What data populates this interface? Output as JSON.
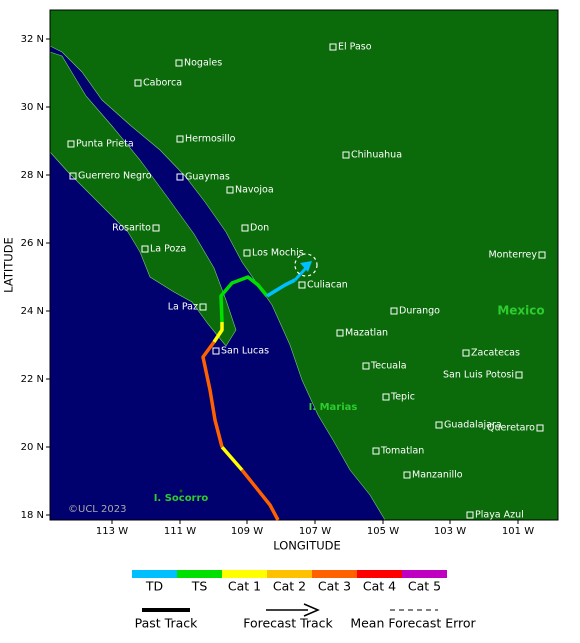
{
  "map": {
    "xlabel": "LONGITUDE",
    "ylabel": "LATITUDE",
    "xticks": [
      "113 W",
      "111 W",
      "109 W",
      "107 W",
      "105 W",
      "103 W",
      "101 W"
    ],
    "yticks": [
      "32 N",
      "30 N",
      "28 N",
      "26 N",
      "24 N",
      "22 N",
      "20 N",
      "18 N"
    ],
    "cities": [
      "Nogales",
      "El Paso",
      "Caborca",
      "Hermosillo",
      "Punta Prieta",
      "Chihuahua",
      "Guerrero Negro",
      "Guaymas",
      "Navojoa",
      "Don",
      "Rosarito",
      "La Poza",
      "Los Mochis",
      "Monterrey",
      "Culiacan",
      "La Paz",
      "Durango",
      "Mazatlan",
      "San Lucas",
      "Zacatecas",
      "Tecuala",
      "San Luis Potosi",
      "Tepic",
      "Guadalajara",
      "Queretaro",
      "Tomatlan",
      "Manzanillo",
      "Playa Azul"
    ],
    "country": "Mexico",
    "islands": [
      "I. Marias",
      "I. Socorro"
    ],
    "credit": "©UCL 2023"
  },
  "legend": {
    "categories": [
      {
        "label": "TD",
        "color": "#00bfff"
      },
      {
        "label": "TS",
        "color": "#00e000"
      },
      {
        "label": "Cat 1",
        "color": "#ffff00"
      },
      {
        "label": "Cat 2",
        "color": "#ffc000"
      },
      {
        "label": "Cat 3",
        "color": "#ff6000"
      },
      {
        "label": "Cat 4",
        "color": "#ff0000"
      },
      {
        "label": "Cat 5",
        "color": "#c000c0"
      }
    ],
    "lines": [
      "Past Track",
      "Forecast Track",
      "Mean Forecast Error"
    ]
  }
}
